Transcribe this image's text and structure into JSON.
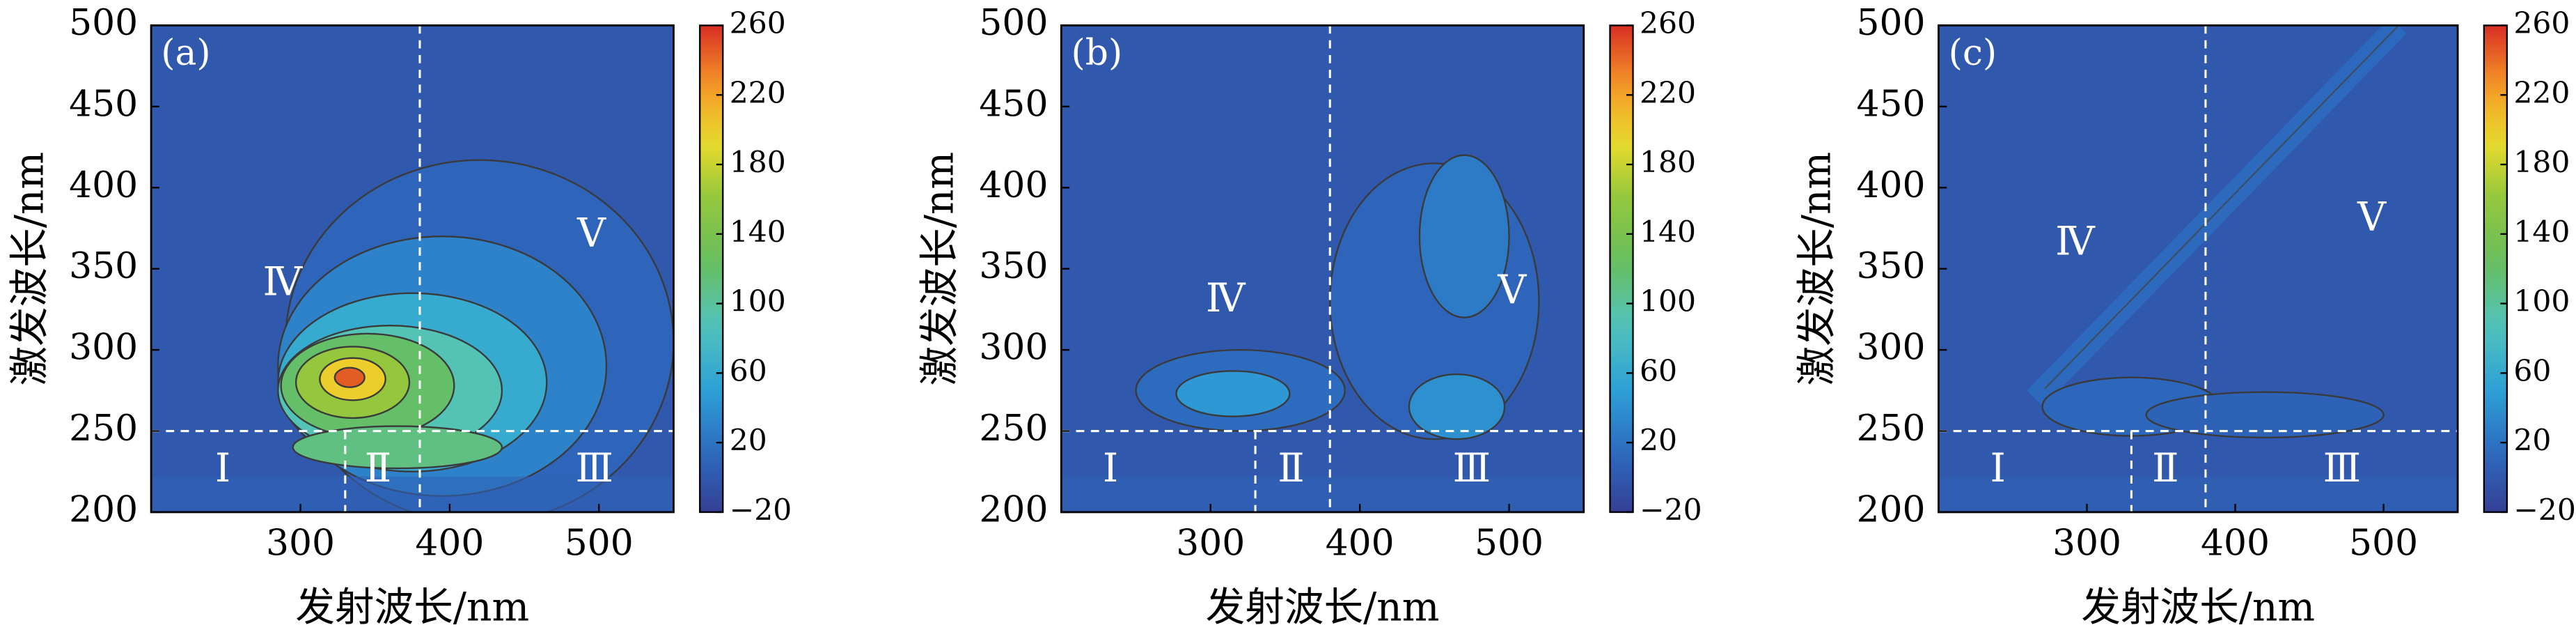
{
  "figure": {
    "x_axis_label": "发射波长/nm",
    "y_axis_label": "激发波长/nm"
  },
  "chart_data": [
    {
      "type": "heatmap",
      "panel_label": "(a)",
      "xlabel": "发射波长/nm",
      "ylabel": "激发波长/nm",
      "xlim": [
        200,
        550
      ],
      "ylim": [
        200,
        500
      ],
      "xticks": [
        300,
        400,
        500
      ],
      "yticks": [
        200,
        250,
        300,
        350,
        400,
        450,
        500
      ],
      "colorbar": {
        "min": -20,
        "max": 260,
        "ticks": [
          -20,
          20,
          60,
          100,
          140,
          180,
          220,
          260
        ]
      },
      "divider_lines": {
        "emission_nm": 380,
        "emission_lower_nm": 330,
        "excitation_nm": 250
      },
      "region_labels": [
        {
          "text": "Ⅰ",
          "em": 248,
          "ex": 225
        },
        {
          "text": "Ⅱ",
          "em": 352,
          "ex": 225
        },
        {
          "text": "Ⅲ",
          "em": 497,
          "ex": 225
        },
        {
          "text": "Ⅳ",
          "em": 288,
          "ex": 340
        },
        {
          "text": "Ⅴ",
          "em": 495,
          "ex": 370
        }
      ],
      "intensity_blobs": [
        {
          "em": 420,
          "ex": 305,
          "rx": 130,
          "ry": 112,
          "value": 10
        },
        {
          "em": 395,
          "ex": 290,
          "rx": 110,
          "ry": 80,
          "value": 30
        },
        {
          "em": 375,
          "ex": 280,
          "rx": 90,
          "ry": 55,
          "value": 60
        },
        {
          "em": 360,
          "ex": 275,
          "rx": 75,
          "ry": 40,
          "value": 90
        },
        {
          "em": 345,
          "ex": 278,
          "rx": 58,
          "ry": 32,
          "value": 120
        },
        {
          "em": 335,
          "ex": 280,
          "rx": 38,
          "ry": 22,
          "value": 160
        },
        {
          "em": 335,
          "ex": 282,
          "rx": 22,
          "ry": 13,
          "value": 200
        },
        {
          "em": 333,
          "ex": 283,
          "rx": 10,
          "ry": 6,
          "value": 245
        },
        {
          "em": 365,
          "ex": 240,
          "rx": 70,
          "ry": 13,
          "value": 110
        }
      ]
    },
    {
      "type": "heatmap",
      "panel_label": "(b)",
      "xlabel": "发射波长/nm",
      "ylabel": "激发波长/nm",
      "xlim": [
        200,
        550
      ],
      "ylim": [
        200,
        500
      ],
      "xticks": [
        300,
        400,
        500
      ],
      "yticks": [
        200,
        250,
        300,
        350,
        400,
        450,
        500
      ],
      "colorbar": {
        "min": -20,
        "max": 260,
        "ticks": [
          -20,
          20,
          60,
          100,
          140,
          180,
          220,
          260
        ]
      },
      "divider_lines": {
        "emission_nm": 380,
        "emission_lower_nm": 330,
        "excitation_nm": 250
      },
      "region_labels": [
        {
          "text": "Ⅰ",
          "em": 233,
          "ex": 225
        },
        {
          "text": "Ⅱ",
          "em": 354,
          "ex": 225
        },
        {
          "text": "Ⅲ",
          "em": 475,
          "ex": 225
        },
        {
          "text": "Ⅳ",
          "em": 310,
          "ex": 330
        },
        {
          "text": "Ⅴ",
          "em": 502,
          "ex": 335
        }
      ],
      "intensity_blobs": [
        {
          "em": 450,
          "ex": 330,
          "rx": 70,
          "ry": 85,
          "value": 10
        },
        {
          "em": 470,
          "ex": 370,
          "rx": 30,
          "ry": 50,
          "value": 25
        },
        {
          "em": 320,
          "ex": 275,
          "rx": 70,
          "ry": 25,
          "value": 15
        },
        {
          "em": 315,
          "ex": 273,
          "rx": 38,
          "ry": 14,
          "value": 45
        },
        {
          "em": 465,
          "ex": 265,
          "rx": 32,
          "ry": 20,
          "value": 40
        }
      ]
    },
    {
      "type": "heatmap",
      "panel_label": "(c)",
      "xlabel": "发射波长/nm",
      "ylabel": "激发波长/nm",
      "xlim": [
        200,
        550
      ],
      "ylim": [
        200,
        500
      ],
      "xticks": [
        300,
        400,
        500
      ],
      "yticks": [
        200,
        250,
        300,
        350,
        400,
        450,
        500
      ],
      "colorbar": {
        "min": -20,
        "max": 260,
        "ticks": [
          -20,
          20,
          60,
          100,
          140,
          180,
          220,
          260
        ]
      },
      "divider_lines": {
        "emission_nm": 380,
        "emission_lower_nm": 330,
        "excitation_nm": 250
      },
      "region_labels": [
        {
          "text": "Ⅰ",
          "em": 240,
          "ex": 225
        },
        {
          "text": "Ⅱ",
          "em": 353,
          "ex": 225
        },
        {
          "text": "Ⅲ",
          "em": 472,
          "ex": 225
        },
        {
          "text": "Ⅳ",
          "em": 292,
          "ex": 365
        },
        {
          "text": "Ⅴ",
          "em": 492,
          "ex": 380
        }
      ],
      "intensity_blobs": [
        {
          "em": 330,
          "ex": 265,
          "rx": 60,
          "ry": 18,
          "value": 12
        },
        {
          "em": 420,
          "ex": 260,
          "rx": 80,
          "ry": 14,
          "value": 8
        }
      ],
      "rayleigh_band": {
        "from": [
          265,
          270
        ],
        "to": [
          510,
          500
        ],
        "value": 15
      }
    }
  ]
}
